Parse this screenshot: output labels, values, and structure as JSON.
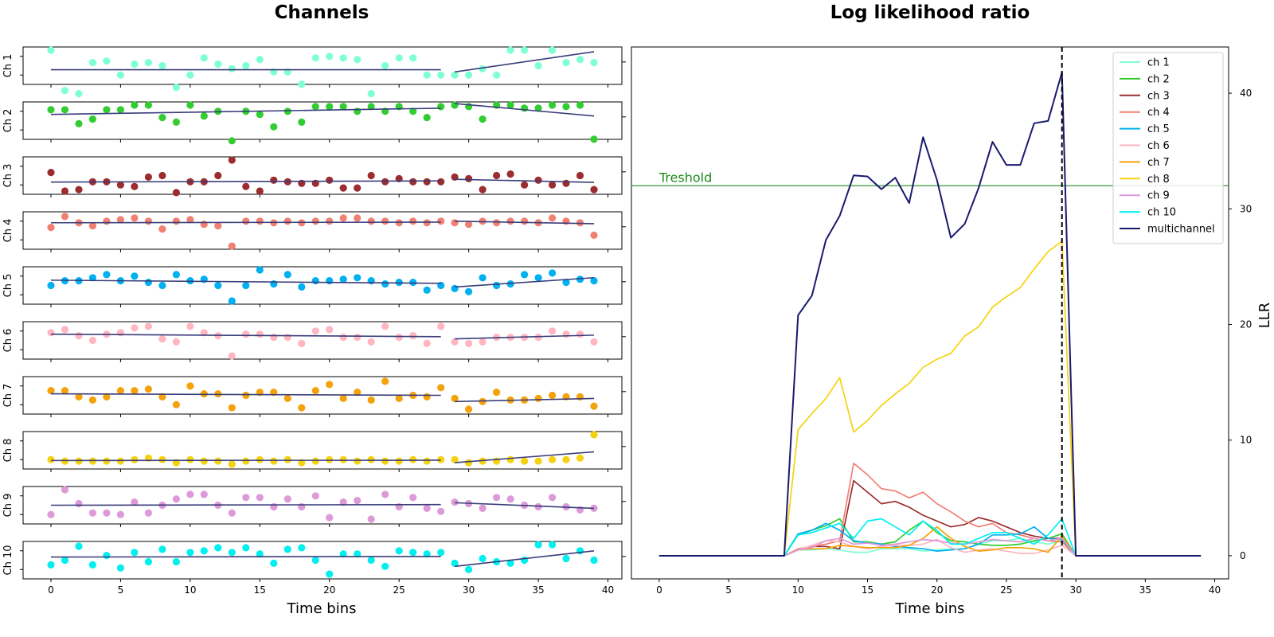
{
  "chart_data": [
    {
      "type": "scatter",
      "title": "Channels",
      "xlabel": "Time bins",
      "xlim": [
        -2,
        41
      ],
      "xticks": [
        0,
        5,
        10,
        15,
        20,
        25,
        30,
        35,
        40
      ],
      "change_point": 29,
      "x": [
        0,
        1,
        2,
        3,
        4,
        5,
        6,
        7,
        8,
        9,
        10,
        11,
        12,
        13,
        14,
        15,
        16,
        17,
        18,
        19,
        20,
        21,
        22,
        23,
        24,
        25,
        26,
        27,
        28,
        29,
        30,
        31,
        32,
        33,
        34,
        35,
        36,
        37,
        38,
        39
      ],
      "channels": [
        {
          "name": "Ch 1",
          "color": "#7fffd4",
          "values": [
            1.0,
            -0.3,
            -0.4,
            0.6,
            0.65,
            0.2,
            0.55,
            0.6,
            0.5,
            -0.2,
            0.2,
            0.75,
            0.55,
            0.4,
            0.5,
            0.7,
            0.3,
            0.3,
            -0.1,
            0.75,
            0.8,
            0.75,
            0.7,
            -0.4,
            0.5,
            0.75,
            0.75,
            0.2,
            0.2,
            0.2,
            0.2,
            0.4,
            0.2,
            1.0,
            1.0,
            0.5,
            1.0,
            0.6,
            0.7,
            0.6
          ],
          "fit1": [
            0.37,
            0.37
          ],
          "fit2": [
            0.3,
            0.95
          ]
        },
        {
          "name": "Ch 2",
          "color": "#32cd32",
          "values": [
            0.85,
            0.85,
            0.4,
            0.55,
            0.85,
            0.85,
            1.0,
            1.0,
            0.6,
            0.45,
            1.0,
            0.65,
            0.8,
            -0.15,
            0.8,
            0.7,
            0.3,
            0.8,
            0.45,
            0.95,
            0.95,
            0.95,
            0.8,
            0.95,
            0.8,
            0.95,
            0.8,
            0.6,
            0.95,
            1.0,
            0.95,
            0.55,
            1.0,
            1.0,
            0.9,
            0.9,
            1.0,
            0.95,
            1.0,
            -0.1
          ],
          "fit1": [
            0.7,
            0.9
          ],
          "fit2": [
            1.05,
            0.65
          ]
        },
        {
          "name": "Ch 3",
          "color": "#9b2d30",
          "values": [
            0.6,
            0.0,
            0.05,
            0.3,
            0.3,
            0.2,
            0.15,
            0.45,
            0.5,
            -0.05,
            0.3,
            0.3,
            0.5,
            1.0,
            0.15,
            0.0,
            0.35,
            0.3,
            0.25,
            0.25,
            0.35,
            0.1,
            0.1,
            0.5,
            0.3,
            0.4,
            0.3,
            0.3,
            0.3,
            0.45,
            0.4,
            0.05,
            0.5,
            0.55,
            0.2,
            0.35,
            0.2,
            0.25,
            0.5,
            0.05
          ],
          "fit1": [
            0.29,
            0.33
          ],
          "fit2": [
            0.38,
            0.28
          ]
        },
        {
          "name": "Ch 4",
          "color": "#f08072",
          "values": [
            0.6,
            0.95,
            0.75,
            0.65,
            0.8,
            0.85,
            0.9,
            0.8,
            0.55,
            0.8,
            0.85,
            0.7,
            0.65,
            0.0,
            0.8,
            0.8,
            0.75,
            0.8,
            0.75,
            0.8,
            0.8,
            0.9,
            0.9,
            0.8,
            0.8,
            0.75,
            0.8,
            0.75,
            0.8,
            0.75,
            0.7,
            0.8,
            0.75,
            0.8,
            0.8,
            0.75,
            0.9,
            0.8,
            0.75,
            0.35
          ],
          "fit1": [
            0.75,
            0.77
          ],
          "fit2": [
            0.8,
            0.72
          ]
        },
        {
          "name": "Ch 5",
          "color": "#00b0f0",
          "values": [
            0.5,
            0.65,
            0.65,
            0.75,
            0.85,
            0.65,
            0.8,
            0.6,
            0.5,
            0.85,
            0.65,
            0.7,
            0.5,
            0.0,
            0.5,
            1.0,
            0.55,
            0.85,
            0.45,
            0.65,
            0.65,
            0.7,
            0.75,
            0.65,
            0.55,
            0.6,
            0.6,
            0.35,
            0.5,
            0.4,
            0.3,
            0.75,
            0.5,
            0.55,
            0.85,
            0.75,
            0.9,
            0.6,
            0.7,
            0.65
          ],
          "fit1": [
            0.67,
            0.57
          ],
          "fit2": [
            0.45,
            0.75
          ]
        },
        {
          "name": "Ch 6",
          "color": "#ffb6c1",
          "values": [
            0.75,
            0.85,
            0.65,
            0.5,
            0.7,
            0.75,
            0.9,
            0.95,
            0.55,
            0.45,
            0.95,
            0.75,
            0.65,
            0.0,
            0.7,
            0.7,
            0.6,
            0.6,
            0.4,
            0.8,
            0.85,
            0.6,
            0.6,
            0.45,
            0.95,
            0.6,
            0.65,
            0.4,
            0.95,
            0.45,
            0.4,
            0.45,
            0.6,
            0.6,
            0.6,
            0.6,
            0.8,
            0.7,
            0.7,
            0.45
          ],
          "fit1": [
            0.7,
            0.62
          ],
          "fit2": [
            0.55,
            0.67
          ]
        },
        {
          "name": "Ch 7",
          "color": "#f4a20b",
          "values": [
            0.65,
            0.65,
            0.45,
            0.35,
            0.45,
            0.65,
            0.65,
            0.7,
            0.45,
            0.2,
            0.8,
            0.55,
            0.55,
            0.1,
            0.5,
            0.6,
            0.6,
            0.4,
            0.1,
            0.65,
            0.85,
            0.4,
            0.6,
            0.35,
            0.95,
            0.4,
            0.5,
            0.45,
            0.75,
            0.4,
            0.05,
            0.3,
            0.6,
            0.35,
            0.35,
            0.4,
            0.5,
            0.45,
            0.45,
            0.15
          ],
          "fit1": [
            0.55,
            0.5
          ],
          "fit2": [
            0.3,
            0.4
          ]
        },
        {
          "name": "Ch 8",
          "color": "#f5d20f",
          "values": [
            0.2,
            0.15,
            0.15,
            0.15,
            0.15,
            0.15,
            0.2,
            0.25,
            0.2,
            0.1,
            0.2,
            0.15,
            0.15,
            0.05,
            0.15,
            0.2,
            0.15,
            0.2,
            0.1,
            0.15,
            0.2,
            0.2,
            0.15,
            0.2,
            0.15,
            0.15,
            0.2,
            0.15,
            0.2,
            0.2,
            0.1,
            0.15,
            0.15,
            0.2,
            0.15,
            0.15,
            0.2,
            0.2,
            0.25,
            1.0
          ],
          "fit1": [
            0.17,
            0.18
          ],
          "fit2": [
            0.1,
            0.45
          ]
        },
        {
          "name": "Ch 9",
          "color": "#dd9ad8",
          "values": [
            0.2,
            1.0,
            0.55,
            0.25,
            0.25,
            0.2,
            0.6,
            0.25,
            0.5,
            0.7,
            0.85,
            0.85,
            0.5,
            0.25,
            0.75,
            0.75,
            0.45,
            0.7,
            0.45,
            0.8,
            0.1,
            0.6,
            0.65,
            0.05,
            0.85,
            0.45,
            0.75,
            0.4,
            0.3,
            0.6,
            0.55,
            0.4,
            0.75,
            0.7,
            0.5,
            0.45,
            0.75,
            0.45,
            0.35,
            0.4
          ],
          "fit1": [
            0.5,
            0.52
          ],
          "fit2": [
            0.58,
            0.4
          ]
        },
        {
          "name": "Ch 10",
          "color": "#00f0f0",
          "values": [
            0.35,
            0.5,
            0.95,
            0.35,
            0.65,
            0.25,
            0.75,
            0.45,
            0.85,
            0.45,
            0.75,
            0.8,
            0.9,
            0.75,
            0.9,
            0.7,
            0.4,
            0.85,
            0.9,
            0.5,
            0.05,
            0.7,
            0.7,
            0.5,
            0.3,
            0.8,
            0.75,
            0.7,
            0.75,
            0.4,
            0.2,
            0.55,
            0.45,
            0.4,
            0.5,
            1.0,
            1.0,
            0.55,
            0.8,
            0.5
          ],
          "fit1": [
            0.6,
            0.62
          ],
          "fit2": [
            0.3,
            0.8
          ]
        }
      ]
    },
    {
      "type": "line",
      "title": "Log likelihood ratio",
      "xlabel": "Time bins",
      "ylabel": "LLR",
      "xlim": [
        -2,
        41
      ],
      "ylim": [
        -2,
        44
      ],
      "xticks": [
        0,
        5,
        10,
        15,
        20,
        25,
        30,
        35,
        40
      ],
      "yticks": [
        0,
        10,
        20,
        30,
        40
      ],
      "threshold": {
        "value": 32,
        "label": "Treshold",
        "color": "#59a85a"
      },
      "change_point": 29,
      "legend_position": "top-right",
      "x": [
        0,
        1,
        2,
        3,
        4,
        5,
        6,
        7,
        8,
        9,
        10,
        11,
        12,
        13,
        14,
        15,
        16,
        17,
        18,
        19,
        20,
        21,
        22,
        23,
        24,
        25,
        26,
        27,
        28,
        29,
        30,
        31,
        32,
        33,
        34,
        35,
        36,
        37,
        38,
        39
      ],
      "series": [
        {
          "name": "ch 1",
          "color": "#7fffd4",
          "values": [
            0,
            0,
            0,
            0,
            0,
            0,
            0,
            0,
            0,
            0,
            0.5,
            0.5,
            0.6,
            0.5,
            0.3,
            0.3,
            0.6,
            0.6,
            0.6,
            0.4,
            0.5,
            0.6,
            0.6,
            1.0,
            1.3,
            1.3,
            1.5,
            1.2,
            1.0,
            1.3,
            0,
            0,
            0,
            0,
            0,
            0,
            0,
            0,
            0,
            0
          ]
        },
        {
          "name": "ch 2",
          "color": "#32cd32",
          "values": [
            0,
            0,
            0,
            0,
            0,
            0,
            0,
            0,
            0,
            0,
            1.8,
            2.2,
            2.6,
            3.2,
            1.2,
            1.2,
            1.0,
            1.2,
            2.2,
            3.0,
            2.0,
            1.3,
            1.2,
            1.0,
            0.9,
            0.9,
            1.0,
            1.3,
            1.5,
            1.9,
            0,
            0,
            0,
            0,
            0,
            0,
            0,
            0,
            0,
            0
          ]
        },
        {
          "name": "ch 3",
          "color": "#9b2d30",
          "values": [
            0,
            0,
            0,
            0,
            0,
            0,
            0,
            0,
            0,
            0,
            0.5,
            0.8,
            0.8,
            0.6,
            6.5,
            5.5,
            4.5,
            4.7,
            4.2,
            3.5,
            3.0,
            2.5,
            2.7,
            3.3,
            3.0,
            2.5,
            2.0,
            1.7,
            1.5,
            1.5,
            0,
            0,
            0,
            0,
            0,
            0,
            0,
            0,
            0,
            0
          ]
        },
        {
          "name": "ch 4",
          "color": "#f08072",
          "values": [
            0,
            0,
            0,
            0,
            0,
            0,
            0,
            0,
            0,
            0,
            0.6,
            0.8,
            1.0,
            1.3,
            8.0,
            7.0,
            5.8,
            5.6,
            5.0,
            5.5,
            4.5,
            3.8,
            3.0,
            2.5,
            2.8,
            2.0,
            1.8,
            1.5,
            1.3,
            1.2,
            0,
            0,
            0,
            0,
            0,
            0,
            0,
            0,
            0,
            0
          ]
        },
        {
          "name": "ch 5",
          "color": "#00b0f0",
          "values": [
            0,
            0,
            0,
            0,
            0,
            0,
            0,
            0,
            0,
            0,
            1.9,
            2.2,
            2.8,
            2.2,
            1.3,
            1.1,
            1.0,
            0.8,
            0.7,
            0.6,
            0.4,
            0.5,
            0.6,
            1.0,
            1.8,
            1.8,
            1.9,
            2.5,
            1.5,
            1.4,
            0,
            0,
            0,
            0,
            0,
            0,
            0,
            0,
            0,
            0
          ]
        },
        {
          "name": "ch 6",
          "color": "#ffb6c1",
          "values": [
            0,
            0,
            0,
            0,
            0,
            0,
            0,
            0,
            0,
            0,
            0.5,
            0.9,
            1.3,
            1.2,
            0.8,
            0.6,
            0.8,
            0.9,
            0.9,
            1.0,
            1.4,
            0.7,
            0.3,
            0.5,
            0.6,
            0.4,
            0.2,
            0.2,
            0.5,
            0.9,
            0,
            0,
            0,
            0,
            0,
            0,
            0,
            0,
            0,
            0
          ]
        },
        {
          "name": "ch 7",
          "color": "#f4a20b",
          "values": [
            0,
            0,
            0,
            0,
            0,
            0,
            0,
            0,
            0,
            0,
            0.5,
            0.6,
            0.6,
            0.9,
            0.8,
            0.7,
            0.7,
            0.7,
            0.9,
            1.5,
            2.5,
            1.5,
            0.8,
            0.4,
            0.5,
            0.7,
            0.7,
            0.6,
            0.3,
            1.7,
            0,
            0,
            0,
            0,
            0,
            0,
            0,
            0,
            0,
            0
          ]
        },
        {
          "name": "ch 8",
          "color": "#f5d20f",
          "values": [
            0,
            0,
            0,
            0,
            0,
            0,
            0,
            0,
            0,
            0,
            10.9,
            12.3,
            13.6,
            15.4,
            10.7,
            11.7,
            13.0,
            14.0,
            14.9,
            16.3,
            17.0,
            17.5,
            19.0,
            19.8,
            21.5,
            22.4,
            23.2,
            24.8,
            26.3,
            27.2,
            0,
            0,
            0,
            0,
            0,
            0,
            0,
            0,
            0,
            0
          ]
        },
        {
          "name": "ch 9",
          "color": "#dd9ad8",
          "values": [
            0,
            0,
            0,
            0,
            0,
            0,
            0,
            0,
            0,
            0,
            0.5,
            0.7,
            1.3,
            1.5,
            1.0,
            1.1,
            0.9,
            1.0,
            1.2,
            1.4,
            1.3,
            1.1,
            1.0,
            1.2,
            1.4,
            1.3,
            1.2,
            1.5,
            1.3,
            1.5,
            0,
            0,
            0,
            0,
            0,
            0,
            0,
            0,
            0,
            0
          ]
        },
        {
          "name": "ch 10",
          "color": "#00f0f0",
          "values": [
            0,
            0,
            0,
            0,
            0,
            0,
            0,
            0,
            0,
            0,
            1.8,
            2.0,
            2.4,
            2.8,
            1.5,
            3.0,
            3.2,
            2.5,
            1.8,
            3.0,
            2.2,
            1.0,
            1.0,
            1.5,
            2.0,
            2.0,
            1.5,
            1.0,
            1.8,
            3.2,
            0,
            0,
            0,
            0,
            0,
            0,
            0,
            0,
            0,
            0
          ]
        },
        {
          "name": "multichannel",
          "color": "#191970",
          "values": [
            0,
            0,
            0,
            0,
            0,
            0,
            0,
            0,
            0,
            0,
            20.8,
            22.5,
            27.3,
            29.4,
            32.9,
            32.8,
            31.7,
            32.7,
            30.5,
            36.2,
            32.5,
            27.5,
            28.7,
            31.8,
            35.8,
            33.8,
            33.8,
            37.4,
            37.6,
            41.8,
            0,
            0,
            0,
            0,
            0,
            0,
            0,
            0,
            0,
            0
          ]
        }
      ]
    }
  ]
}
